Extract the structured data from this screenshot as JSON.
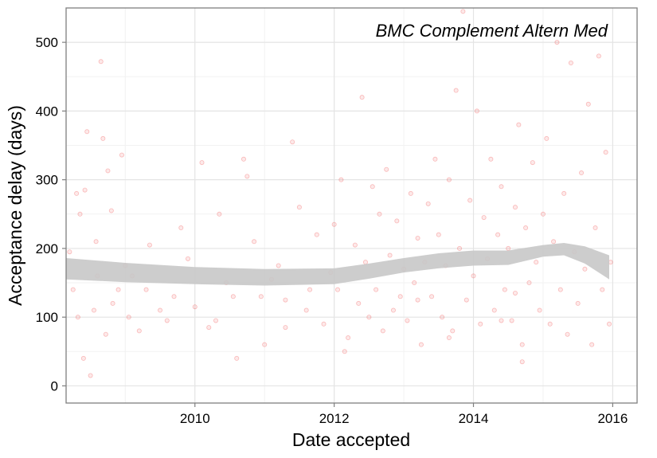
{
  "chart_data": {
    "type": "scatter",
    "annotation": "BMC Complement Altern Med",
    "xlabel": "Date accepted",
    "ylabel": "Acceptance delay (days)",
    "xlim": [
      2008.15,
      2016.35
    ],
    "ylim": [
      -25,
      550
    ],
    "x_ticks": [
      2010,
      2012,
      2014,
      2016
    ],
    "x_tick_labels": [
      "2010",
      "2012",
      "2014",
      "2016"
    ],
    "y_ticks": [
      0,
      100,
      200,
      300,
      400,
      500
    ],
    "y_tick_labels": [
      "0",
      "100",
      "200",
      "300",
      "400",
      "500"
    ],
    "grid": true,
    "point_color": "#f04b4b",
    "band_color": "#c8c8c8",
    "smooth": {
      "x": [
        2008.15,
        2009.0,
        2010.0,
        2011.0,
        2012.0,
        2012.5,
        2013.0,
        2013.5,
        2014.0,
        2014.5,
        2015.0,
        2015.3,
        2015.6,
        2015.95
      ],
      "lower": [
        155,
        151,
        148,
        146,
        148,
        156,
        165,
        171,
        175,
        176,
        188,
        190,
        178,
        155
      ],
      "upper": [
        186,
        179,
        173,
        170,
        171,
        178,
        186,
        193,
        197,
        197,
        205,
        208,
        203,
        190
      ]
    },
    "points": [
      [
        2008.2,
        195
      ],
      [
        2008.25,
        140
      ],
      [
        2008.3,
        280
      ],
      [
        2008.32,
        100
      ],
      [
        2008.35,
        250
      ],
      [
        2008.4,
        40
      ],
      [
        2008.42,
        285
      ],
      [
        2008.45,
        370
      ],
      [
        2008.5,
        15
      ],
      [
        2008.55,
        110
      ],
      [
        2008.58,
        210
      ],
      [
        2008.6,
        160
      ],
      [
        2008.65,
        472
      ],
      [
        2008.68,
        360
      ],
      [
        2008.72,
        75
      ],
      [
        2008.75,
        313
      ],
      [
        2008.8,
        255
      ],
      [
        2008.82,
        120
      ],
      [
        2008.9,
        140
      ],
      [
        2008.95,
        336
      ],
      [
        2009.0,
        175
      ],
      [
        2009.05,
        100
      ],
      [
        2009.1,
        160
      ],
      [
        2009.2,
        80
      ],
      [
        2009.3,
        140
      ],
      [
        2009.35,
        205
      ],
      [
        2009.5,
        110
      ],
      [
        2009.6,
        95
      ],
      [
        2009.7,
        130
      ],
      [
        2009.8,
        230
      ],
      [
        2009.9,
        185
      ],
      [
        2010.0,
        115
      ],
      [
        2010.1,
        325
      ],
      [
        2010.2,
        85
      ],
      [
        2010.3,
        95
      ],
      [
        2010.35,
        250
      ],
      [
        2010.45,
        150
      ],
      [
        2010.55,
        130
      ],
      [
        2010.6,
        40
      ],
      [
        2010.7,
        330
      ],
      [
        2010.75,
        305
      ],
      [
        2010.85,
        210
      ],
      [
        2010.95,
        130
      ],
      [
        2011.0,
        60
      ],
      [
        2011.1,
        155
      ],
      [
        2011.2,
        175
      ],
      [
        2011.3,
        125
      ],
      [
        2011.4,
        355
      ],
      [
        2011.5,
        260
      ],
      [
        2011.6,
        110
      ],
      [
        2011.65,
        140
      ],
      [
        2011.75,
        220
      ],
      [
        2011.85,
        90
      ],
      [
        2011.95,
        165
      ],
      [
        2012.0,
        235
      ],
      [
        2012.05,
        140
      ],
      [
        2012.1,
        300
      ],
      [
        2012.15,
        50
      ],
      [
        2012.2,
        70
      ],
      [
        2012.3,
        205
      ],
      [
        2012.4,
        420
      ],
      [
        2012.45,
        180
      ],
      [
        2012.5,
        100
      ],
      [
        2012.55,
        290
      ],
      [
        2012.6,
        140
      ],
      [
        2012.65,
        250
      ],
      [
        2012.7,
        80
      ],
      [
        2012.75,
        315
      ],
      [
        2012.8,
        190
      ],
      [
        2012.85,
        110
      ],
      [
        2012.9,
        240
      ],
      [
        2012.95,
        130
      ],
      [
        2013.0,
        170
      ],
      [
        2013.05,
        95
      ],
      [
        2013.1,
        280
      ],
      [
        2013.15,
        150
      ],
      [
        2013.2,
        215
      ],
      [
        2013.25,
        60
      ],
      [
        2013.3,
        180
      ],
      [
        2013.35,
        265
      ],
      [
        2013.4,
        130
      ],
      [
        2013.45,
        330
      ],
      [
        2013.5,
        220
      ],
      [
        2013.55,
        100
      ],
      [
        2013.6,
        175
      ],
      [
        2013.65,
        300
      ],
      [
        2013.7,
        80
      ],
      [
        2013.75,
        430
      ],
      [
        2013.8,
        200
      ],
      [
        2013.85,
        545
      ],
      [
        2013.9,
        125
      ],
      [
        2013.95,
        270
      ],
      [
        2014.0,
        160
      ],
      [
        2014.05,
        400
      ],
      [
        2014.1,
        90
      ],
      [
        2014.15,
        245
      ],
      [
        2014.2,
        185
      ],
      [
        2014.25,
        330
      ],
      [
        2014.3,
        110
      ],
      [
        2014.35,
        220
      ],
      [
        2014.4,
        290
      ],
      [
        2014.45,
        140
      ],
      [
        2014.5,
        200
      ],
      [
        2014.55,
        95
      ],
      [
        2014.6,
        260
      ],
      [
        2014.65,
        380
      ],
      [
        2014.7,
        60
      ],
      [
        2014.75,
        230
      ],
      [
        2014.8,
        150
      ],
      [
        2014.85,
        325
      ],
      [
        2014.9,
        180
      ],
      [
        2014.95,
        110
      ],
      [
        2015.0,
        250
      ],
      [
        2015.05,
        360
      ],
      [
        2015.1,
        90
      ],
      [
        2015.15,
        210
      ],
      [
        2015.2,
        500
      ],
      [
        2015.25,
        140
      ],
      [
        2015.3,
        280
      ],
      [
        2015.35,
        75
      ],
      [
        2015.4,
        470
      ],
      [
        2015.45,
        195
      ],
      [
        2015.5,
        120
      ],
      [
        2015.55,
        310
      ],
      [
        2015.6,
        170
      ],
      [
        2015.65,
        410
      ],
      [
        2015.7,
        60
      ],
      [
        2015.75,
        230
      ],
      [
        2015.8,
        480
      ],
      [
        2015.85,
        140
      ],
      [
        2015.9,
        340
      ],
      [
        2015.95,
        90
      ],
      [
        2015.97,
        180
      ],
      [
        2014.7,
        35
      ],
      [
        2014.6,
        135
      ],
      [
        2014.4,
        95
      ],
      [
        2013.65,
        70
      ],
      [
        2013.2,
        125
      ],
      [
        2012.35,
        120
      ],
      [
        2011.3,
        85
      ]
    ]
  }
}
